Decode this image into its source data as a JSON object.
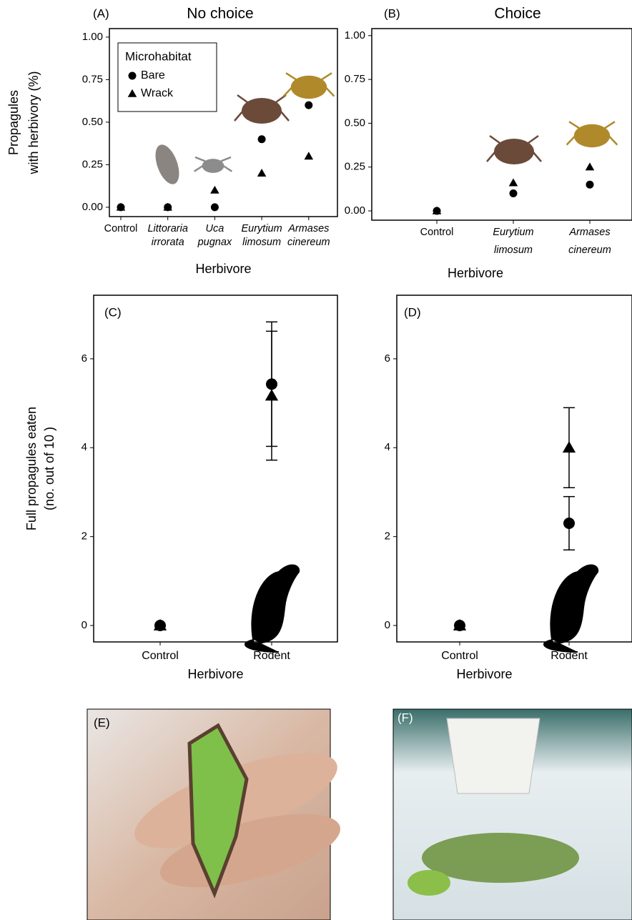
{
  "chart_data": [
    {
      "type": "scatter",
      "panel": "(A)",
      "title": "No choice",
      "ylabel": [
        "Propagules",
        "with herbivory (%)"
      ],
      "xlabel": "Herbivore",
      "categories": [
        "Control",
        "Littoraria irrorata",
        "Uca pugnax",
        "Eurytium limosum",
        "Armases cinereum"
      ],
      "italic_categories": [
        false,
        true,
        true,
        true,
        true
      ],
      "series": [
        {
          "name": "Bare",
          "marker": "circle",
          "color": "#000000",
          "values": [
            0,
            0,
            0,
            0.4,
            0.6
          ]
        },
        {
          "name": "Wrack",
          "marker": "triangle",
          "color": "#000000",
          "values": [
            0,
            0,
            0.1,
            0.2,
            0.3
          ]
        }
      ],
      "legend": "top-left",
      "legend_title": "Microhabitat",
      "ylim": [
        -0.055,
        1.05
      ],
      "yticks": [
        {
          "value": 0,
          "label": "0.00"
        },
        {
          "value": 0.25,
          "label": "0.25"
        },
        {
          "value": 0.5,
          "label": "0.50"
        },
        {
          "value": 0.75,
          "label": "0.75"
        },
        {
          "value": 1,
          "label": "1.00"
        }
      ]
    },
    {
      "type": "scatter",
      "panel": "(B)",
      "title": "Choice",
      "xlabel": "Herbivore",
      "categories": [
        "Control",
        "Eurytium limosum",
        "Armases cinereum"
      ],
      "italic_categories": [
        false,
        true,
        true
      ],
      "series": [
        {
          "name": "Bare",
          "marker": "circle",
          "color": "#000000",
          "values": [
            0,
            0.1,
            0.15
          ]
        },
        {
          "name": "Wrack",
          "marker": "triangle",
          "color": "#000000",
          "values": [
            0,
            0.16,
            0.25
          ]
        }
      ],
      "ylim": [
        -0.053,
        1.04
      ],
      "yticks": [
        {
          "value": 0,
          "label": "0.00"
        },
        {
          "value": 0.25,
          "label": "0.25"
        },
        {
          "value": 0.5,
          "label": "0.50"
        },
        {
          "value": 0.75,
          "label": "0.75"
        },
        {
          "value": 1,
          "label": "1.00"
        }
      ]
    },
    {
      "type": "errorscatter",
      "panel": "(C)",
      "ylabel": [
        "Full propagules eaten",
        "(no. out of 10 )"
      ],
      "xlabel": "Herbivore",
      "categories": [
        "Control",
        "Rodent"
      ],
      "series": [
        {
          "name": "Bare",
          "marker": "circle",
          "color": "#000000",
          "values": [
            0,
            5.43
          ],
          "errors": [
            0,
            1.4
          ]
        },
        {
          "name": "Wrack",
          "marker": "triangle",
          "color": "#000000",
          "values": [
            0,
            5.17
          ],
          "errors": [
            0,
            1.45
          ]
        }
      ],
      "ylim": [
        -0.37,
        7.43
      ],
      "yticks": [
        0,
        2,
        4,
        6
      ]
    },
    {
      "type": "errorscatter",
      "panel": "(D)",
      "xlabel": "Herbivore",
      "categories": [
        "Control",
        "Rodent"
      ],
      "series": [
        {
          "name": "Bare",
          "marker": "circle",
          "color": "#000000",
          "values": [
            0,
            2.3
          ],
          "errors": [
            0,
            0.6
          ]
        },
        {
          "name": "Wrack",
          "marker": "triangle",
          "color": "#000000",
          "values": [
            0,
            4.0
          ],
          "errors": [
            0,
            0.9
          ]
        }
      ],
      "ylim": [
        -0.37,
        7.43
      ],
      "yticks": [
        0,
        2,
        4,
        6
      ]
    }
  ],
  "photos": [
    {
      "label": "(E)"
    },
    {
      "label": "(F)"
    }
  ]
}
